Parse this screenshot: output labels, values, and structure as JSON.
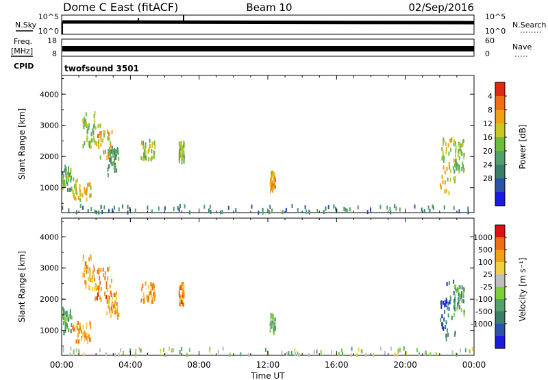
{
  "header": {
    "radar": "Dome C East (fitACF)",
    "beam": "Beam 10",
    "date": "02/Sep/2016"
  },
  "noise_panel": {
    "left_label": "N.Sky",
    "right_label": "N.Search",
    "left_ticks": [
      "10^5",
      "10^0"
    ],
    "right_ticks": [
      "10^5",
      "10^0"
    ]
  },
  "freq_panel": {
    "left_label_1": "Freq.",
    "left_label_2": "[MHz]",
    "right_label": "Nave",
    "left_ticks": [
      "18",
      "8"
    ],
    "right_ticks": [
      "60",
      "0"
    ]
  },
  "cpid_panel": {
    "label": "CPID",
    "program": "twofsound 3501"
  },
  "chart_data": [
    {
      "type": "heatmap",
      "ylabel": "Slant Range [km]",
      "ylim": [
        200,
        4600
      ],
      "yticks": [
        "1000",
        "2000",
        "3000",
        "4000"
      ],
      "xlim_hours": [
        0,
        24
      ],
      "x_ticks": [
        "00:00",
        "04:00",
        "08:00",
        "12:00",
        "16:00",
        "20:00",
        "00:00"
      ],
      "colorbar": {
        "label": "Power [dB]",
        "ticks": [
          "4",
          "8",
          "12",
          "16",
          "20",
          "24",
          "28"
        ],
        "colors": [
          "#1a1ae0",
          "#2a52a6",
          "#3a7e6a",
          "#52a06a",
          "#6cbe3a",
          "#c8c820",
          "#f0a010",
          "#f06e10",
          "#e02a10"
        ]
      },
      "echo_regions": [
        {
          "t0": 0.0,
          "t1": 0.55,
          "r0": 900,
          "r1": 1700,
          "level": 3.5
        },
        {
          "t0": 0.6,
          "t1": 1.7,
          "r0": 600,
          "r1": 1300,
          "level": 5.0
        },
        {
          "t0": 1.2,
          "t1": 1.9,
          "r0": 2300,
          "r1": 3400,
          "level": 4.0
        },
        {
          "t0": 1.9,
          "t1": 2.9,
          "r0": 1900,
          "r1": 3000,
          "level": 5.5
        },
        {
          "t0": 2.6,
          "t1": 3.3,
          "r0": 1400,
          "r1": 2300,
          "level": 3.0
        },
        {
          "t0": 4.6,
          "t1": 5.4,
          "r0": 1900,
          "r1": 2500,
          "level": 4.5
        },
        {
          "t0": 6.8,
          "t1": 7.1,
          "r0": 1800,
          "r1": 2500,
          "level": 4.0
        },
        {
          "t0": 12.1,
          "t1": 12.4,
          "r0": 900,
          "r1": 1500,
          "level": 6.0
        },
        {
          "t0": 22.0,
          "t1": 22.9,
          "r0": 700,
          "r1": 2600,
          "level": 5.0
        },
        {
          "t0": 22.8,
          "t1": 23.4,
          "r0": 1500,
          "r1": 2500,
          "level": 4.0
        },
        {
          "t0": 0.0,
          "t1": 24.0,
          "r0": 200,
          "r1": 420,
          "level": 2.0
        }
      ]
    },
    {
      "type": "heatmap",
      "ylabel": "Slant Range [km]",
      "ylim": [
        200,
        4600
      ],
      "yticks": [
        "1000",
        "2000",
        "3000",
        "4000"
      ],
      "xlim_hours": [
        0,
        24
      ],
      "x_ticks": [
        "00:00",
        "04:00",
        "08:00",
        "12:00",
        "16:00",
        "20:00",
        "00:00"
      ],
      "xlabel": "Time UT",
      "colorbar": {
        "label": "Velocity [m s⁻¹]",
        "ticks": [
          "1000",
          "500",
          "100",
          "25",
          "-25",
          "-100",
          "-500",
          "-1000"
        ],
        "colors": [
          "#1a1ae0",
          "#2a52a6",
          "#3a7e6a",
          "#52a06a",
          "#7ed03a",
          "#bebebe",
          "#f0d040",
          "#f0a010",
          "#f06e10",
          "#e01010"
        ]
      },
      "echo_regions": [
        {
          "t0": 0.0,
          "t1": 0.55,
          "r0": 900,
          "r1": 1700,
          "level": 3.0
        },
        {
          "t0": 0.6,
          "t1": 1.7,
          "r0": 600,
          "r1": 1300,
          "level": 7.0
        },
        {
          "t0": 1.2,
          "t1": 1.9,
          "r0": 2300,
          "r1": 3400,
          "level": 6.5
        },
        {
          "t0": 1.9,
          "t1": 2.9,
          "r0": 1900,
          "r1": 3000,
          "level": 7.5
        },
        {
          "t0": 2.6,
          "t1": 3.3,
          "r0": 1400,
          "r1": 2300,
          "level": 7.0
        },
        {
          "t0": 4.6,
          "t1": 5.4,
          "r0": 1900,
          "r1": 2500,
          "level": 7.0
        },
        {
          "t0": 6.8,
          "t1": 7.1,
          "r0": 1800,
          "r1": 2500,
          "level": 7.5
        },
        {
          "t0": 12.1,
          "t1": 12.4,
          "r0": 900,
          "r1": 1500,
          "level": 3.5
        },
        {
          "t0": 22.0,
          "t1": 22.9,
          "r0": 700,
          "r1": 2600,
          "level": 1.5
        },
        {
          "t0": 22.8,
          "t1": 23.4,
          "r0": 1500,
          "r1": 2500,
          "level": 3.0
        },
        {
          "t0": 0.0,
          "t1": 24.0,
          "r0": 200,
          "r1": 420,
          "level": 4.5
        }
      ]
    }
  ]
}
